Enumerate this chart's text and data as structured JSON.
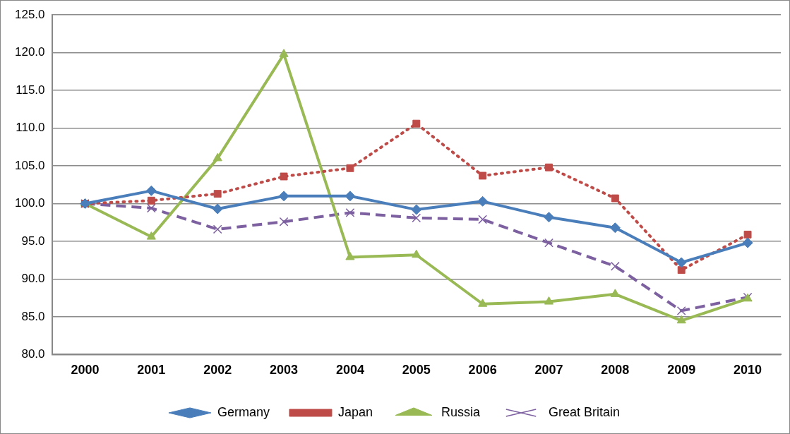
{
  "chart_data": {
    "type": "line",
    "categories": [
      "2000",
      "2001",
      "2002",
      "2003",
      "2004",
      "2005",
      "2006",
      "2007",
      "2008",
      "2009",
      "2010"
    ],
    "series": [
      {
        "name": "Germany",
        "color": "#4a7ebb",
        "marker": "diamond",
        "line_style": "solid",
        "values": [
          100,
          101.7,
          99.3,
          101.0,
          101.0,
          99.2,
          100.3,
          98.2,
          96.8,
          92.2,
          94.8
        ]
      },
      {
        "name": "Japan",
        "color": "#be4b48",
        "marker": "square",
        "line_style": "dotted",
        "values": [
          100,
          100.4,
          101.3,
          103.6,
          104.7,
          110.6,
          103.7,
          104.8,
          100.7,
          91.2,
          95.9
        ]
      },
      {
        "name": "Russia",
        "color": "#98b954",
        "marker": "triangle",
        "line_style": "solid",
        "values": [
          100,
          95.6,
          106.0,
          119.8,
          92.9,
          93.2,
          86.7,
          87.0,
          88.0,
          84.5,
          87.4
        ]
      },
      {
        "name": "Great Britain",
        "color": "#7d60a0",
        "marker": "cross",
        "line_style": "dashed",
        "values": [
          100,
          99.4,
          96.6,
          97.6,
          98.8,
          98.1,
          97.9,
          94.8,
          91.7,
          85.8,
          87.6
        ]
      }
    ],
    "ylim": [
      80,
      125
    ],
    "yticks": [
      {
        "value": 80,
        "label": "80.0"
      },
      {
        "value": 85,
        "label": "85.0"
      },
      {
        "value": 90,
        "label": "90.0"
      },
      {
        "value": 95,
        "label": "95.0"
      },
      {
        "value": 100,
        "label": "100.0"
      },
      {
        "value": 105,
        "label": "105.0"
      },
      {
        "value": 110,
        "label": "110.0"
      },
      {
        "value": 115,
        "label": "115.0"
      },
      {
        "value": 120,
        "label": "120.0"
      },
      {
        "value": 125,
        "label": "125.0"
      }
    ],
    "grid": "y",
    "legend": "bottom"
  }
}
